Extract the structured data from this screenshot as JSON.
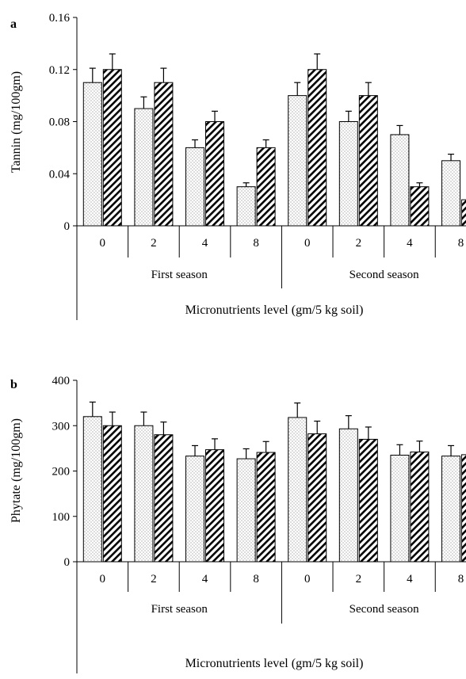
{
  "patterns": {
    "series_0": "dotted",
    "series_1": "diagonal-hatch"
  },
  "chart_data": [
    {
      "type": "bar",
      "panel_label": "a",
      "groups": [
        "First season",
        "Second season"
      ],
      "categories": [
        "0",
        "2",
        "4",
        "8",
        "0",
        "2",
        "4",
        "8"
      ],
      "series": [
        {
          "values": [
            0.11,
            0.09,
            0.06,
            0.03,
            0.1,
            0.08,
            0.07,
            0.05
          ],
          "errors": [
            0.011,
            0.009,
            0.006,
            0.003,
            0.01,
            0.008,
            0.007,
            0.005
          ]
        },
        {
          "values": [
            0.12,
            0.11,
            0.08,
            0.06,
            0.12,
            0.1,
            0.03,
            0.02
          ],
          "errors": [
            0.012,
            0.011,
            0.008,
            0.006,
            0.012,
            0.01,
            0.003,
            0.002
          ]
        }
      ],
      "xlabel": "Micronutrients level (gm/5 kg soil)",
      "ylabel": "Tannin (mg/100gm)",
      "ylim": [
        0,
        0.16
      ],
      "yticks": [
        "0",
        "0.04",
        "0.08",
        "0.12",
        "0.16"
      ],
      "ytick_values": [
        0,
        0.04,
        0.08,
        0.12,
        0.16
      ],
      "grid": false,
      "error_bars": true
    },
    {
      "type": "bar",
      "panel_label": "b",
      "groups": [
        "First season",
        "Second season"
      ],
      "categories": [
        "0",
        "2",
        "4",
        "8",
        "0",
        "2",
        "4",
        "8"
      ],
      "series": [
        {
          "values": [
            320,
            300,
            233,
            227,
            318,
            293,
            235,
            233
          ],
          "errors": [
            32,
            30,
            23,
            22,
            32,
            29,
            23,
            23
          ]
        },
        {
          "values": [
            300,
            280,
            247,
            241,
            282,
            270,
            242,
            236
          ],
          "errors": [
            30,
            28,
            24,
            24,
            28,
            27,
            24,
            23
          ]
        }
      ],
      "xlabel": "Micronutrients level (gm/5 kg soil)",
      "ylabel": "Phytate (mg/100gm)",
      "ylim": [
        0,
        400
      ],
      "yticks": [
        "0",
        "100",
        "200",
        "300",
        "400"
      ],
      "ytick_values": [
        0,
        100,
        200,
        300,
        400
      ],
      "grid": false,
      "error_bars": true
    }
  ]
}
